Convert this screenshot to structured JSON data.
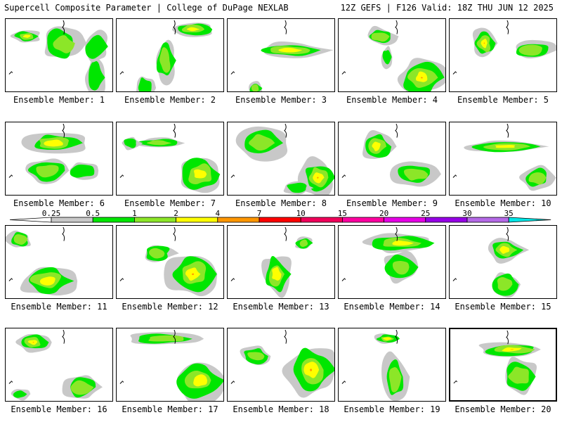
{
  "header": {
    "left": "Supercell Composite Parameter | College of DuPage NEXLAB",
    "right": "12Z GEFS | F126 Valid: 18Z THU JUN 12 2025"
  },
  "members": [
    {
      "label": "Ensemble Member: 1"
    },
    {
      "label": "Ensemble Member: 2"
    },
    {
      "label": "Ensemble Member: 3"
    },
    {
      "label": "Ensemble Member: 4"
    },
    {
      "label": "Ensemble Member: 5"
    },
    {
      "label": "Ensemble Member: 6"
    },
    {
      "label": "Ensemble Member: 7"
    },
    {
      "label": "Ensemble Member: 8"
    },
    {
      "label": "Ensemble Member: 9"
    },
    {
      "label": "Ensemble Member: 10"
    },
    {
      "label": "Ensemble Member: 11"
    },
    {
      "label": "Ensemble Member: 12"
    },
    {
      "label": "Ensemble Member: 13"
    },
    {
      "label": "Ensemble Member: 14"
    },
    {
      "label": "Ensemble Member: 15"
    },
    {
      "label": "Ensemble Member: 16"
    },
    {
      "label": "Ensemble Member: 17"
    },
    {
      "label": "Ensemble Member: 18"
    },
    {
      "label": "Ensemble Member: 19"
    },
    {
      "label": "Ensemble Member: 20",
      "selected": true
    }
  ],
  "colorbar": {
    "ticks": [
      "0.25",
      "0.5",
      "1",
      "2",
      "4",
      "7",
      "10",
      "15",
      "20",
      "25",
      "30",
      "35"
    ],
    "colors": [
      "#c8c8c8",
      "#00e600",
      "#8ce628",
      "#ffff00",
      "#ff9600",
      "#ff0000",
      "#f0005a",
      "#ff00a0",
      "#e600e6",
      "#9600e6",
      "#b469e6",
      "#00e6e6"
    ]
  }
}
